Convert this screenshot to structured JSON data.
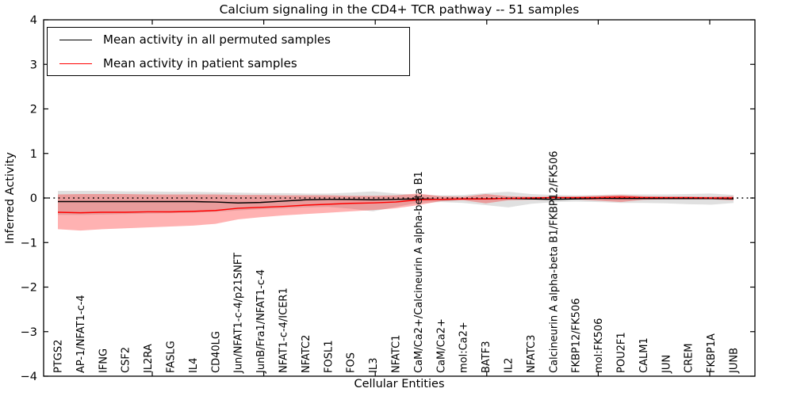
{
  "chart_data": {
    "type": "line",
    "title": "Calcium signaling in the CD4+ TCR pathway -- 51 samples",
    "xlabel": "Cellular Entities",
    "ylabel": "Inferred Activity",
    "ylim": [
      -4,
      4
    ],
    "yticks": [
      4,
      3,
      2,
      1,
      0,
      -1,
      -2,
      -3,
      -4
    ],
    "grid": false,
    "zero_reference_line": 0,
    "legend_position": "upper left",
    "categories": [
      "PTGS2",
      "AP-1/NFAT1-c-4",
      "IFNG",
      "CSF2",
      "IL2RA",
      "FASLG",
      "IL4",
      "CD40LG",
      "Jun/NFAT1-c-4/p21SNFT",
      "JunB/Fra1/NFAT1-c-4",
      "NFAT1-c-4/ICER1",
      "NFATC2",
      "FOSL1",
      "FOS",
      "IL3",
      "NFATC1",
      "CaM/Ca2+/Calcineurin A alpha-beta B1",
      "CaM/Ca2+",
      "mol:Ca2+",
      "BATF3",
      "IL2",
      "NFATC3",
      "Calcineurin A alpha-beta B1/FKBP12/FK506",
      "FKBP12/FK506",
      "mol:FK506",
      "POU2F1",
      "CALM1",
      "JUN",
      "CREM",
      "FKBP1A",
      "JUNB"
    ],
    "series": [
      {
        "name": "Mean activity in all permuted samples",
        "color": "#000000",
        "values": [
          -0.08,
          -0.08,
          -0.08,
          -0.08,
          -0.08,
          -0.08,
          -0.08,
          -0.09,
          -0.11,
          -0.1,
          -0.07,
          -0.04,
          -0.03,
          -0.03,
          -0.04,
          -0.03,
          -0.02,
          -0.03,
          -0.02,
          -0.02,
          -0.01,
          -0.02,
          -0.03,
          -0.02,
          -0.01,
          -0.01,
          -0.01,
          -0.01,
          -0.01,
          -0.01,
          -0.02
        ]
      },
      {
        "name": "Mean activity in patient samples",
        "color": "#ff0000",
        "values": [
          -0.32,
          -0.33,
          -0.32,
          -0.32,
          -0.31,
          -0.31,
          -0.3,
          -0.28,
          -0.23,
          -0.21,
          -0.19,
          -0.16,
          -0.14,
          -0.12,
          -0.11,
          -0.09,
          -0.04,
          -0.03,
          -0.02,
          -0.02,
          -0.01,
          0.0,
          0.01,
          0.01,
          0.01,
          0.02,
          0.01,
          0.01,
          0.01,
          0.0,
          0.0
        ]
      }
    ],
    "bands": [
      {
        "name": "permuted-samples-range",
        "color": "rgba(0,0,0,0.12)",
        "low": [
          -0.38,
          -0.38,
          -0.37,
          -0.36,
          -0.35,
          -0.34,
          -0.33,
          -0.31,
          -0.28,
          -0.25,
          -0.23,
          -0.21,
          -0.2,
          -0.24,
          -0.3,
          -0.2,
          -0.11,
          -0.09,
          -0.11,
          -0.16,
          -0.21,
          -0.13,
          -0.09,
          -0.08,
          -0.09,
          -0.11,
          -0.11,
          -0.12,
          -0.14,
          -0.15,
          -0.11
        ],
        "high": [
          0.16,
          0.16,
          0.16,
          0.15,
          0.15,
          0.14,
          0.14,
          0.13,
          0.12,
          0.11,
          0.11,
          0.1,
          0.1,
          0.12,
          0.15,
          0.1,
          0.07,
          0.06,
          0.07,
          0.11,
          0.14,
          0.09,
          0.07,
          0.06,
          0.07,
          0.08,
          0.08,
          0.08,
          0.09,
          0.1,
          0.07
        ]
      },
      {
        "name": "patient-samples-range",
        "color": "rgba(255,0,0,0.30)",
        "low": [
          -0.7,
          -0.73,
          -0.7,
          -0.68,
          -0.66,
          -0.64,
          -0.62,
          -0.58,
          -0.48,
          -0.43,
          -0.39,
          -0.36,
          -0.33,
          -0.3,
          -0.27,
          -0.23,
          -0.16,
          -0.07,
          -0.05,
          -0.12,
          -0.05,
          -0.04,
          -0.04,
          -0.03,
          -0.06,
          -0.09,
          -0.04,
          -0.03,
          -0.03,
          -0.03,
          -0.05
        ],
        "high": [
          0.08,
          0.09,
          0.09,
          0.09,
          0.08,
          0.08,
          0.08,
          0.08,
          0.07,
          0.07,
          0.06,
          0.06,
          0.06,
          0.05,
          0.05,
          0.06,
          0.1,
          0.04,
          0.03,
          0.09,
          0.04,
          0.03,
          0.03,
          0.03,
          0.05,
          0.07,
          0.04,
          0.03,
          0.03,
          0.03,
          0.04
        ]
      }
    ]
  }
}
